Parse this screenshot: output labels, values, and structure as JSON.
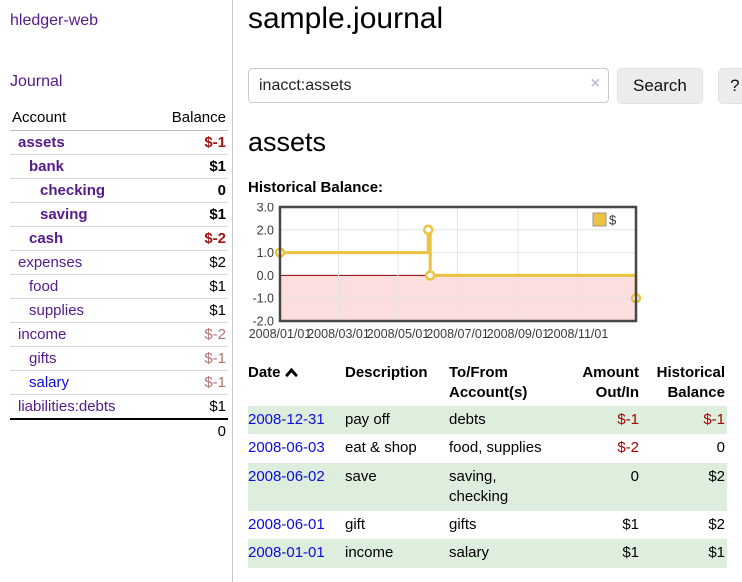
{
  "app": {
    "brand": "hledger-web",
    "nav": {
      "journal": "Journal"
    }
  },
  "sidebar": {
    "header": {
      "account": "Account",
      "balance": "Balance"
    },
    "accounts": [
      {
        "name": "assets",
        "balance": "$-1"
      },
      {
        "name": "bank",
        "balance": "$1"
      },
      {
        "name": "checking",
        "balance": "0"
      },
      {
        "name": "saving",
        "balance": "$1"
      },
      {
        "name": "cash",
        "balance": "$-2"
      },
      {
        "name": "expenses",
        "balance": "$2"
      },
      {
        "name": "food",
        "balance": "$1"
      },
      {
        "name": "supplies",
        "balance": "$1"
      },
      {
        "name": "income",
        "balance": "$-2"
      },
      {
        "name": "gifts",
        "balance": "$-1"
      },
      {
        "name": "salary",
        "balance": "$-1"
      },
      {
        "name": "liabilities:debts",
        "balance": "$1"
      }
    ],
    "total": "0"
  },
  "main": {
    "title": "sample.journal",
    "search": {
      "value": "inacct:assets",
      "clear_icon": "×",
      "button": "Search",
      "help": "?"
    },
    "account_heading": "assets",
    "chart_label": "Historical Balance:"
  },
  "chart_data": {
    "type": "line",
    "step": true,
    "title": "Historical Balance:",
    "x_range": [
      "2008-01-01",
      "2008-12-31"
    ],
    "ylim": [
      -2,
      3
    ],
    "series": [
      {
        "name": "$",
        "color": "#edc240",
        "points": [
          {
            "date": "2008-01-01",
            "value": 1
          },
          {
            "date": "2008-06-01",
            "value": 2
          },
          {
            "date": "2008-06-03",
            "value": 0
          },
          {
            "date": "2008-12-31",
            "value": -1
          }
        ]
      }
    ],
    "y_ticks": [
      {
        "v": 3,
        "label": "3.0"
      },
      {
        "v": 2,
        "label": "2.0"
      },
      {
        "v": 1,
        "label": "1.0"
      },
      {
        "v": 0,
        "label": "0.0"
      },
      {
        "v": -1,
        "label": "-1.0"
      },
      {
        "v": -2,
        "label": "-2.0"
      }
    ],
    "x_ticks": [
      {
        "date": "2008-01-01",
        "label": "2008/01/01"
      },
      {
        "date": "2008-03-01",
        "label": "2008/03/01"
      },
      {
        "date": "2008-05-01",
        "label": "2008/05/01"
      },
      {
        "date": "2008-07-01",
        "label": "2008/07/01"
      },
      {
        "date": "2008-09-01",
        "label": "2008/09/01"
      },
      {
        "date": "2008-11-01",
        "label": "2008/11/01"
      }
    ],
    "negative_region_fill": "#fcdede",
    "zero_line_color": "#8b0000",
    "grid_color": "#e3e3e3",
    "legend_position": "top-right"
  },
  "register": {
    "headers": {
      "date": "Date",
      "description": "Description",
      "accounts": "To/From Account(s)",
      "amount": "Amount Out/In",
      "balance": "Historical Balance"
    },
    "rows": [
      {
        "date": "2008-12-31",
        "description": "pay off",
        "accounts": "debts",
        "amount": "$-1",
        "balance": "$-1"
      },
      {
        "date": "2008-06-03",
        "description": "eat & shop",
        "accounts": "food, supplies",
        "amount": "$-2",
        "balance": "0"
      },
      {
        "date": "2008-06-02",
        "description": "save",
        "accounts": "saving, checking",
        "amount": "0",
        "balance": "$2"
      },
      {
        "date": "2008-06-01",
        "description": "gift",
        "accounts": "gifts",
        "amount": "$1",
        "balance": "$2"
      },
      {
        "date": "2008-01-01",
        "description": "income",
        "accounts": "salary",
        "amount": "$1",
        "balance": "$1"
      }
    ]
  }
}
